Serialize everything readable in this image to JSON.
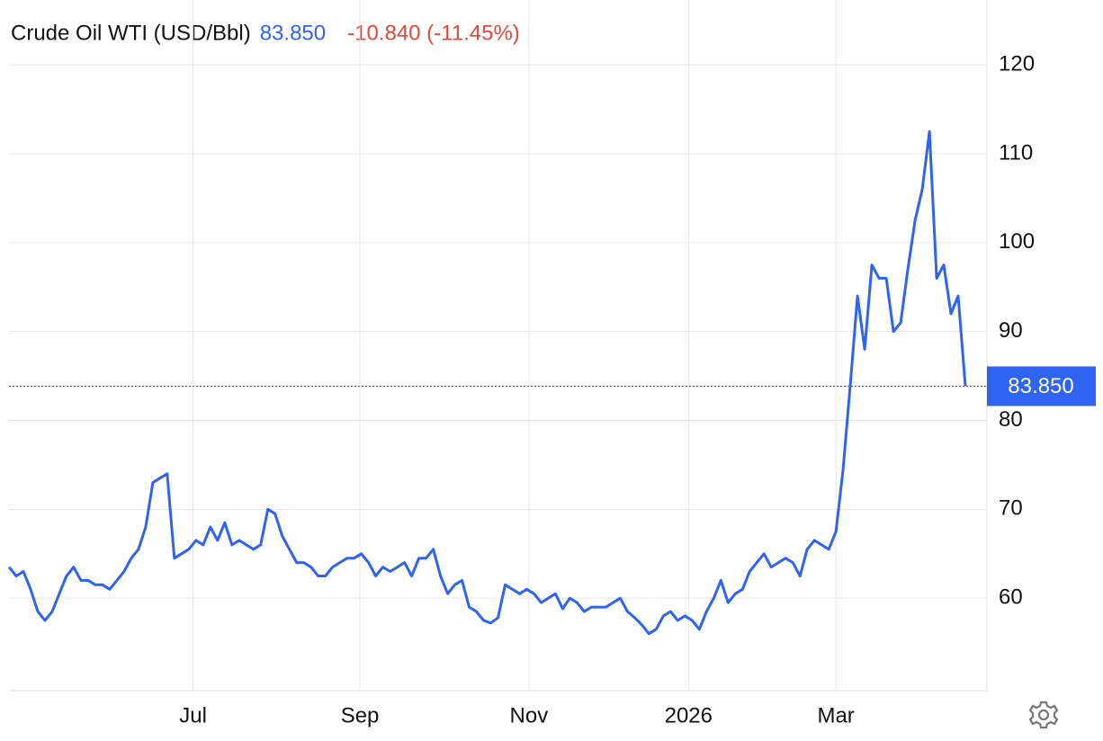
{
  "chart_data": {
    "type": "line",
    "title": "Crude Oil WTI (USD/Bbl)",
    "last_price": "83.850",
    "change": "-10.840 (-11.45%)",
    "series": [
      {
        "color": "#2f63f1",
        "values": [
          63.5,
          62.5,
          63,
          61,
          58.5,
          57.5,
          58.5,
          60.5,
          62.5,
          63.5,
          62,
          62,
          61.5,
          61.5,
          61,
          62,
          63,
          64.5,
          65.5,
          68,
          73,
          73.5,
          74,
          64.5,
          65,
          65.5,
          66.5,
          66,
          68,
          66.5,
          68.5,
          66,
          66.5,
          66,
          65.5,
          66,
          70,
          69.5,
          67,
          65.5,
          64,
          64,
          63.5,
          62.5,
          62.5,
          63.5,
          64,
          64.5,
          64.5,
          65,
          64,
          62.5,
          63.5,
          63,
          63.5,
          64,
          62.5,
          64.5,
          64.5,
          65.5,
          62.5,
          60.5,
          61.5,
          62,
          59,
          58.5,
          57.5,
          57.2,
          57.8,
          61.5,
          61,
          60.5,
          61,
          60.5,
          59.5,
          60,
          60.5,
          58.8,
          60,
          59.5,
          58.5,
          59,
          59,
          59,
          59.5,
          60,
          58.5,
          57.8,
          57,
          56,
          56.5,
          58,
          58.5,
          57.5,
          58,
          57.5,
          56.5,
          58.5,
          60,
          62,
          59.5,
          60.5,
          61,
          63,
          64,
          65,
          63.5,
          64,
          64.5,
          64,
          62.5,
          65.5,
          66.5,
          66,
          65.5,
          67.5,
          74.5,
          84,
          94,
          88,
          97.5,
          96,
          96,
          90,
          91,
          97,
          102.5,
          106,
          112.5,
          96,
          97.5,
          92,
          94,
          83.85
        ]
      }
    ],
    "xlim": [
      0,
      136
    ],
    "xticks": [
      {
        "value": 25.6,
        "label": "Jul"
      },
      {
        "value": 48.8,
        "label": "Sep"
      },
      {
        "value": 72.3,
        "label": "Nov"
      },
      {
        "value": 94.5,
        "label": "2026"
      },
      {
        "value": 115,
        "label": "Mar"
      }
    ],
    "ylim": [
      50,
      127
    ],
    "yticks": [
      60,
      70,
      80,
      90,
      100,
      110,
      120
    ],
    "grid": true
  }
}
